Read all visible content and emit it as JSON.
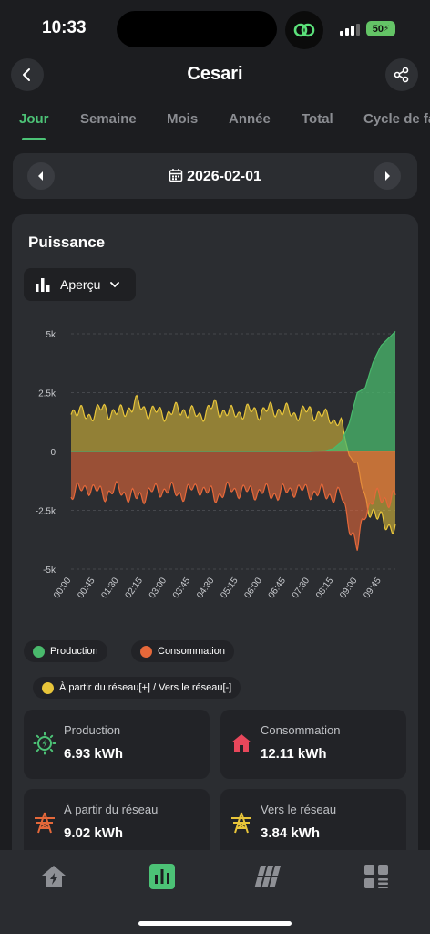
{
  "status": {
    "time": "10:33",
    "battery": "50"
  },
  "header": {
    "title": "Cesari"
  },
  "tabs": [
    "Jour",
    "Semaine",
    "Mois",
    "Année",
    "Total",
    "Cycle de fa"
  ],
  "date": {
    "label": "2026-02-01"
  },
  "card": {
    "title": "Puissance",
    "view_select": "Aperçu"
  },
  "legend": {
    "production": "Production",
    "consumption": "Consommation",
    "grid": "À partir du réseau[+] / Vers le réseau[-]"
  },
  "colors": {
    "production": "#49b96c",
    "consumption": "#e5683a",
    "grid": "#e8c53a",
    "accent": "#4cc276"
  },
  "chart_data": {
    "type": "area",
    "y_tick_labels": [
      "5k",
      "2.5k",
      "0",
      "-2.5k",
      "-5k"
    ],
    "x_tick_labels": [
      "00:00",
      "00:45",
      "01:30",
      "02:15",
      "03:00",
      "03:45",
      "04:30",
      "05:15",
      "06:00",
      "06:45",
      "07:30",
      "08:15",
      "09:00",
      "09:45"
    ],
    "x_hours": [
      0,
      0.75,
      1.5,
      2.25,
      3,
      3.75,
      4.5,
      5.25,
      6,
      6.75,
      7.5,
      8.25,
      9,
      9.75
    ],
    "ylim": [
      -5000,
      5000
    ],
    "grid": true,
    "legend_position": "bottom",
    "series": [
      {
        "name": "Production",
        "x": [
          0,
          7.5,
          8.0,
          8.25,
          8.5,
          8.75,
          9.0,
          9.25,
          9.5,
          9.75,
          10.2
        ],
        "values": [
          0,
          0,
          30,
          120,
          400,
          1200,
          2500,
          2700,
          3800,
          4500,
          5100
        ]
      },
      {
        "name": "Consommation",
        "x": [
          0,
          0.5,
          1.0,
          1.5,
          2.0,
          2.5,
          3.0,
          3.5,
          4.0,
          4.5,
          5.0,
          5.5,
          6.0,
          6.5,
          7.0,
          7.5,
          8.0,
          8.5,
          8.75,
          9.0,
          9.25,
          9.5,
          9.75,
          10.2
        ],
        "values": [
          -1800,
          -1500,
          -1800,
          -1600,
          -2000,
          -1700,
          -1600,
          -1800,
          -1500,
          -1900,
          -1600,
          -1700,
          -1700,
          -1800,
          -1600,
          -1700,
          -1800,
          -1900,
          -3000,
          -4200,
          -2500,
          -2000,
          -2000,
          -2000
        ]
      },
      {
        "name": "À partir du réseau[+] / Vers le réseau[-]",
        "x": [
          0,
          0.5,
          1.0,
          1.5,
          2.0,
          2.5,
          3.0,
          3.5,
          4.0,
          4.5,
          5.0,
          5.5,
          6.0,
          6.5,
          7.0,
          7.5,
          8.0,
          8.5,
          8.75,
          9.0,
          9.25,
          9.5,
          9.75,
          10.2
        ],
        "values": [
          1800,
          1500,
          1800,
          1600,
          2000,
          1700,
          1600,
          1800,
          1500,
          1900,
          1600,
          1700,
          1700,
          1800,
          1600,
          1700,
          1500,
          1200,
          -200,
          -500,
          -2200,
          -2500,
          -3000,
          -3200
        ]
      }
    ]
  },
  "stats": [
    {
      "label": "Production",
      "value": "6.93 kWh",
      "icon": "solar-icon"
    },
    {
      "label": "Consommation",
      "value": "12.11 kWh",
      "icon": "home-icon"
    },
    {
      "label": "À partir du réseau",
      "value": "9.02 kWh",
      "icon": "grid-tower-icon"
    },
    {
      "label": "Vers le réseau",
      "value": "3.84 kWh",
      "icon": "grid-tower-icon"
    }
  ],
  "nav": [
    {
      "name": "nav-home",
      "icon": "home-bolt-icon"
    },
    {
      "name": "nav-statistics",
      "icon": "bar-chart-icon"
    },
    {
      "name": "nav-devices",
      "icon": "solar-panel-icon"
    },
    {
      "name": "nav-more",
      "icon": "apps-icon"
    }
  ]
}
